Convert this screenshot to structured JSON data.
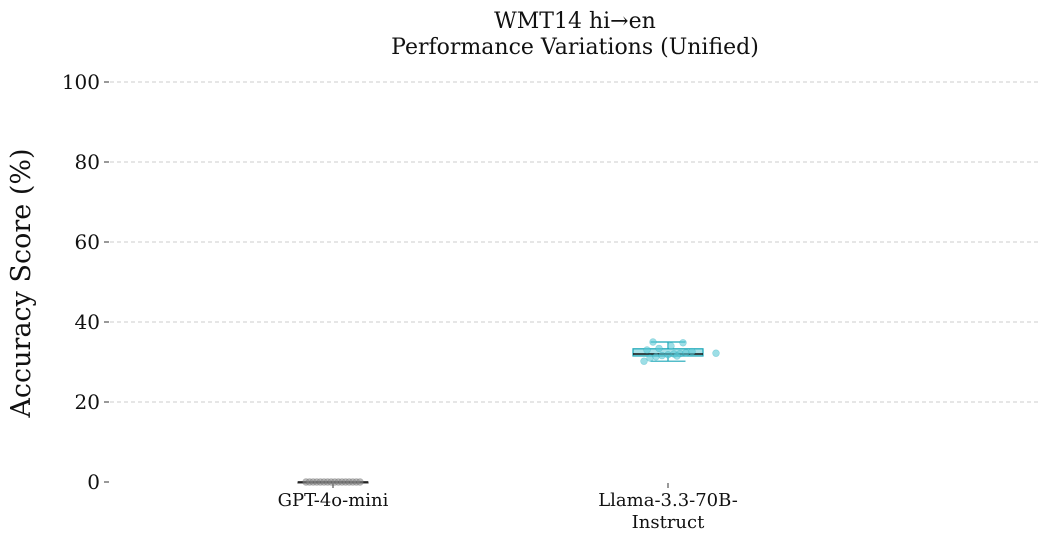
{
  "chart_data": {
    "type": "box",
    "title": [
      "WMT14 hi→en",
      "Performance Variations (Unified)"
    ],
    "xlabel": "",
    "ylabel": "Accuracy Score (%)",
    "ylim": [
      0,
      100
    ],
    "yticks": [
      0,
      20,
      40,
      60,
      80,
      100
    ],
    "grid": "y, dashed",
    "categories": [
      {
        "label_lines": [
          "GPT-4o-mini"
        ],
        "color": "#555555",
        "fill": "#888888"
      },
      {
        "label_lines": [
          "Llama-3.3-70B-",
          "Instruct"
        ],
        "color": "#1aa6b7",
        "fill": "#5cc8d6"
      }
    ],
    "boxes": [
      {
        "whisker_low": 0.0,
        "q1": 0.0,
        "median": 0.0,
        "q3": 0.0,
        "whisker_high": 0.0
      },
      {
        "whisker_low": 30.2,
        "q1": 31.5,
        "median": 32.0,
        "q3": 33.3,
        "whisker_high": 35.0
      }
    ],
    "points": [
      [
        0.0,
        0.0,
        0.0,
        0.0,
        0.0,
        0.0,
        0.0,
        0.0,
        0.0,
        0.0,
        0.0,
        0.0,
        0.0,
        0.0,
        0.0,
        0.0
      ],
      [
        30.2,
        31.0,
        31.3,
        31.6,
        31.8,
        32.0,
        32.1,
        32.3,
        32.6,
        33.0,
        33.4,
        34.0,
        34.8,
        35.0,
        32.2,
        31.5
      ]
    ]
  }
}
